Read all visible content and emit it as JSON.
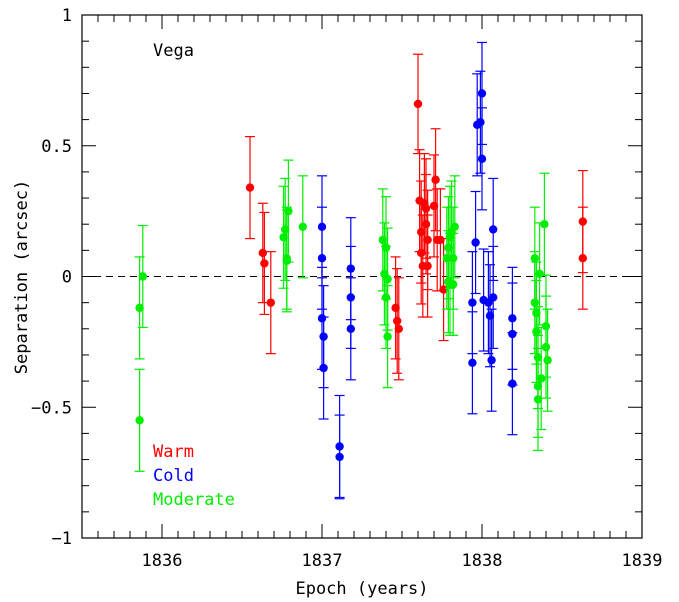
{
  "chart_data": {
    "type": "scatter",
    "title": "Vega",
    "xlabel": "Epoch (years)",
    "ylabel": "Separation (arcsec)",
    "xlim": [
      1835.5,
      1839.0
    ],
    "ylim": [
      -1.0,
      1.0
    ],
    "xticks": [
      "1836",
      "1837",
      "1838",
      "1839"
    ],
    "xtick_values": [
      1836,
      1837,
      1838,
      1839
    ],
    "yticks": [
      "-1",
      "-0.5",
      "0",
      "0.5",
      "1"
    ],
    "ytick_values": [
      -1,
      -0.5,
      0,
      0.5,
      1
    ],
    "reference_line": {
      "y": 0,
      "style": "dashed"
    },
    "grid": false,
    "legend_position": "bottom-left",
    "series": [
      {
        "name": "Warm",
        "color": "#ff0000",
        "points": [
          {
            "x": 1836.55,
            "y": 0.34,
            "err": 0.195
          },
          {
            "x": 1836.63,
            "y": 0.09,
            "err": 0.19
          },
          {
            "x": 1836.64,
            "y": 0.05,
            "err": 0.195
          },
          {
            "x": 1836.68,
            "y": -0.1,
            "err": 0.195
          },
          {
            "x": 1837.46,
            "y": -0.12,
            "err": 0.195
          },
          {
            "x": 1837.47,
            "y": -0.17,
            "err": 0.2
          },
          {
            "x": 1837.48,
            "y": -0.2,
            "err": 0.195
          },
          {
            "x": 1837.6,
            "y": 0.66,
            "err": 0.19
          },
          {
            "x": 1837.61,
            "y": 0.29,
            "err": 0.195
          },
          {
            "x": 1837.62,
            "y": 0.17,
            "err": 0.195
          },
          {
            "x": 1837.62,
            "y": 0.09,
            "err": 0.195
          },
          {
            "x": 1837.63,
            "y": 0.04,
            "err": 0.195
          },
          {
            "x": 1837.64,
            "y": 0.28,
            "err": 0.19
          },
          {
            "x": 1837.65,
            "y": 0.26,
            "err": 0.19
          },
          {
            "x": 1837.65,
            "y": 0.2,
            "err": 0.19
          },
          {
            "x": 1837.66,
            "y": 0.14,
            "err": 0.19
          },
          {
            "x": 1837.66,
            "y": 0.04,
            "err": 0.195
          },
          {
            "x": 1837.7,
            "y": 0.27,
            "err": 0.195
          },
          {
            "x": 1837.71,
            "y": 0.37,
            "err": 0.195
          },
          {
            "x": 1837.72,
            "y": 0.14,
            "err": 0.195
          },
          {
            "x": 1837.74,
            "y": 0.14,
            "err": 0.195
          },
          {
            "x": 1837.76,
            "y": -0.05,
            "err": 0.195
          },
          {
            "x": 1838.63,
            "y": 0.21,
            "err": 0.195
          },
          {
            "x": 1838.63,
            "y": 0.07,
            "err": 0.195
          }
        ]
      },
      {
        "name": "Cold",
        "color": "#0000ff",
        "points": [
          {
            "x": 1837.0,
            "y": 0.19,
            "err": 0.195
          },
          {
            "x": 1837.0,
            "y": 0.07,
            "err": 0.195
          },
          {
            "x": 1837.0,
            "y": -0.16,
            "err": 0.195
          },
          {
            "x": 1837.01,
            "y": -0.23,
            "err": 0.195
          },
          {
            "x": 1837.01,
            "y": -0.35,
            "err": 0.195
          },
          {
            "x": 1837.11,
            "y": -0.65,
            "err": 0.195
          },
          {
            "x": 1837.11,
            "y": -0.69,
            "err": 0.16
          },
          {
            "x": 1837.18,
            "y": 0.03,
            "err": 0.195
          },
          {
            "x": 1837.18,
            "y": -0.08,
            "err": 0.195
          },
          {
            "x": 1837.18,
            "y": -0.2,
            "err": 0.195
          },
          {
            "x": 1837.94,
            "y": -0.1,
            "err": 0.195
          },
          {
            "x": 1837.94,
            "y": -0.33,
            "err": 0.195
          },
          {
            "x": 1837.96,
            "y": 0.13,
            "err": 0.195
          },
          {
            "x": 1837.97,
            "y": 0.58,
            "err": 0.195
          },
          {
            "x": 1837.99,
            "y": 0.59,
            "err": 0.195
          },
          {
            "x": 1838.0,
            "y": 0.7,
            "err": 0.195
          },
          {
            "x": 1838.0,
            "y": 0.45,
            "err": 0.195
          },
          {
            "x": 1838.01,
            "y": -0.09,
            "err": 0.195
          },
          {
            "x": 1838.04,
            "y": -0.1,
            "err": 0.195
          },
          {
            "x": 1838.05,
            "y": -0.15,
            "err": 0.195
          },
          {
            "x": 1838.06,
            "y": -0.32,
            "err": 0.195
          },
          {
            "x": 1838.07,
            "y": 0.18,
            "err": 0.195
          },
          {
            "x": 1838.07,
            "y": -0.08,
            "err": 0.195
          },
          {
            "x": 1838.19,
            "y": -0.16,
            "err": 0.195
          },
          {
            "x": 1838.19,
            "y": -0.22,
            "err": 0.195
          },
          {
            "x": 1838.19,
            "y": -0.41,
            "err": 0.195
          }
        ]
      },
      {
        "name": "Moderate",
        "color": "#00ee00",
        "points": [
          {
            "x": 1835.86,
            "y": -0.12,
            "err": 0.195
          },
          {
            "x": 1835.86,
            "y": -0.55,
            "err": 0.195
          },
          {
            "x": 1835.88,
            "y": 0.0,
            "err": 0.195
          },
          {
            "x": 1836.76,
            "y": 0.15,
            "err": 0.195
          },
          {
            "x": 1836.77,
            "y": 0.18,
            "err": 0.195
          },
          {
            "x": 1836.78,
            "y": 0.07,
            "err": 0.195
          },
          {
            "x": 1836.78,
            "y": 0.06,
            "err": 0.195
          },
          {
            "x": 1836.79,
            "y": 0.25,
            "err": 0.195
          },
          {
            "x": 1836.88,
            "y": 0.19,
            "err": 0.195
          },
          {
            "x": 1837.38,
            "y": 0.14,
            "err": 0.195
          },
          {
            "x": 1837.39,
            "y": 0.01,
            "err": 0.195
          },
          {
            "x": 1837.4,
            "y": 0.11,
            "err": 0.195
          },
          {
            "x": 1837.4,
            "y": -0.08,
            "err": 0.195
          },
          {
            "x": 1837.41,
            "y": -0.23,
            "err": 0.195
          },
          {
            "x": 1837.41,
            "y": -0.01,
            "err": 0.195
          },
          {
            "x": 1837.78,
            "y": 0.07,
            "err": 0.195
          },
          {
            "x": 1837.79,
            "y": 0.11,
            "err": 0.195
          },
          {
            "x": 1837.79,
            "y": -0.02,
            "err": 0.195
          },
          {
            "x": 1837.8,
            "y": 0.15,
            "err": 0.195
          },
          {
            "x": 1837.8,
            "y": -0.03,
            "err": 0.195
          },
          {
            "x": 1837.81,
            "y": 0.17,
            "err": 0.195
          },
          {
            "x": 1837.82,
            "y": 0.07,
            "err": 0.195
          },
          {
            "x": 1837.82,
            "y": -0.03,
            "err": 0.195
          },
          {
            "x": 1837.83,
            "y": 0.19,
            "err": 0.195
          },
          {
            "x": 1838.33,
            "y": 0.07,
            "err": 0.195
          },
          {
            "x": 1838.33,
            "y": -0.1,
            "err": 0.195
          },
          {
            "x": 1838.34,
            "y": -0.14,
            "err": 0.195
          },
          {
            "x": 1838.34,
            "y": -0.21,
            "err": 0.195
          },
          {
            "x": 1838.35,
            "y": -0.31,
            "err": 0.195
          },
          {
            "x": 1838.35,
            "y": -0.42,
            "err": 0.195
          },
          {
            "x": 1838.35,
            "y": -0.47,
            "err": 0.195
          },
          {
            "x": 1838.36,
            "y": 0.01,
            "err": 0.195
          },
          {
            "x": 1838.37,
            "y": -0.39,
            "err": 0.195
          },
          {
            "x": 1838.39,
            "y": 0.2,
            "err": 0.195
          },
          {
            "x": 1838.4,
            "y": -0.19,
            "err": 0.195
          },
          {
            "x": 1838.4,
            "y": -0.27,
            "err": 0.195
          },
          {
            "x": 1838.41,
            "y": -0.32,
            "err": 0.195
          }
        ]
      }
    ]
  }
}
